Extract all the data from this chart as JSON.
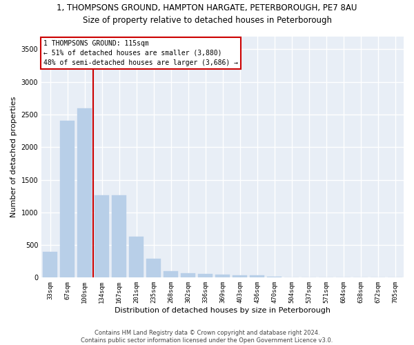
{
  "title_line1": "1, THOMPSONS GROUND, HAMPTON HARGATE, PETERBOROUGH, PE7 8AU",
  "title_line2": "Size of property relative to detached houses in Peterborough",
  "xlabel": "Distribution of detached houses by size in Peterborough",
  "ylabel": "Number of detached properties",
  "footer_line1": "Contains HM Land Registry data © Crown copyright and database right 2024.",
  "footer_line2": "Contains public sector information licensed under the Open Government Licence v3.0.",
  "categories": [
    "33sqm",
    "67sqm",
    "100sqm",
    "134sqm",
    "167sqm",
    "201sqm",
    "235sqm",
    "268sqm",
    "302sqm",
    "336sqm",
    "369sqm",
    "403sqm",
    "436sqm",
    "470sqm",
    "504sqm",
    "537sqm",
    "571sqm",
    "604sqm",
    "638sqm",
    "672sqm",
    "705sqm"
  ],
  "values": [
    400,
    2400,
    2600,
    1260,
    1260,
    630,
    285,
    100,
    65,
    55,
    50,
    40,
    30,
    10,
    5,
    0,
    0,
    0,
    0,
    0,
    0
  ],
  "bar_color": "#b8cfe8",
  "background_color": "#e8eef6",
  "grid_color": "#ffffff",
  "vline_color": "#cc0000",
  "vline_x": 2.5,
  "annotation_text": "1 THOMPSONS GROUND: 115sqm\n← 51% of detached houses are smaller (3,880)\n48% of semi-detached houses are larger (3,686) →",
  "annotation_box_edgecolor": "#cc0000",
  "annotation_box_facecolor": "#ffffff",
  "ylim_max": 3700,
  "yticks": [
    0,
    500,
    1000,
    1500,
    2000,
    2500,
    3000,
    3500
  ],
  "annot_fontsize": 7.0,
  "title1_fontsize": 8.5,
  "title2_fontsize": 8.5,
  "ylabel_fontsize": 8.0,
  "xlabel_fontsize": 8.0,
  "tick_fontsize": 6.5,
  "footer_fontsize": 6.0
}
